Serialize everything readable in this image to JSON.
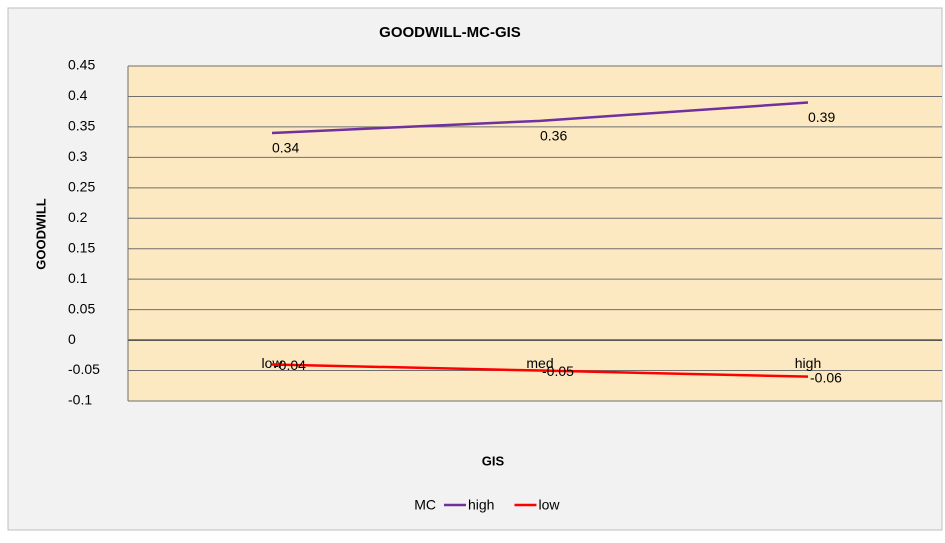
{
  "chart_data": {
    "type": "line",
    "title": "GOODWILL-MC-GIS",
    "x_label": "GIS",
    "y_label": "GOODWILL",
    "legend_title": "MC",
    "categories": [
      "low",
      "med",
      "high"
    ],
    "series": [
      {
        "name": "high",
        "color": "#7030a0",
        "values": [
          0.34,
          0.36,
          0.39
        ]
      },
      {
        "name": "low",
        "color": "#ff0000",
        "values": [
          -0.04,
          -0.05,
          -0.06
        ]
      }
    ],
    "ylim": [
      -0.1,
      0.45
    ],
    "yticks": [
      -0.1,
      -0.05,
      0,
      0.05,
      0.1,
      0.15,
      0.2,
      0.25,
      0.3,
      0.35,
      0.4,
      0.45
    ],
    "grid": true,
    "legend": "bottom"
  }
}
